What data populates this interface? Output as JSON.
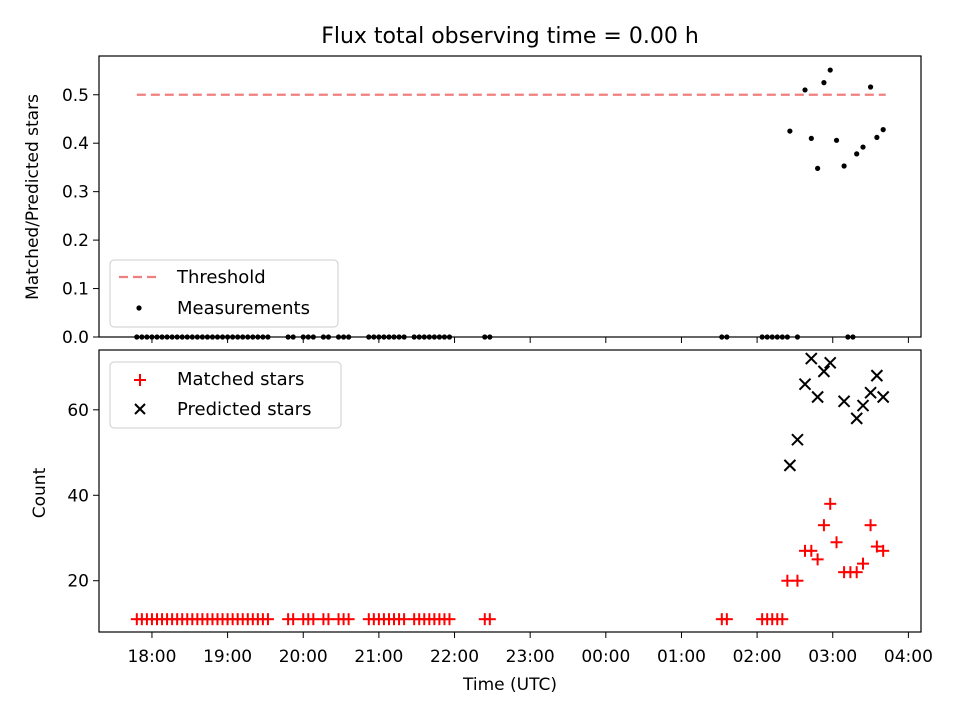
{
  "chart_data": [
    {
      "type": "scatter",
      "title": "Flux total observing time = 0.00 h",
      "xlabel": "",
      "ylabel": "Matched/Predicted stars",
      "ylim": [
        0,
        0.58
      ],
      "xlim": [
        "17:18",
        "04:10"
      ],
      "yticks": [
        0.0,
        0.1,
        0.2,
        0.3,
        0.4,
        0.5
      ],
      "ytick_labels": [
        "0.0",
        "0.1",
        "0.2",
        "0.3",
        "0.4",
        "0.5"
      ],
      "legend_placement": "lower-left",
      "series": [
        {
          "name": "Threshold",
          "kind": "dashed-line",
          "color": "#f08080",
          "x": [
            "17:48",
            "03:42"
          ],
          "y": [
            0.5,
            0.5
          ]
        },
        {
          "name": "Measurements",
          "kind": "dot",
          "color": "#000000",
          "x": [
            "17:48",
            "17:52",
            "17:56",
            "18:00",
            "18:04",
            "18:08",
            "18:12",
            "18:16",
            "18:20",
            "18:24",
            "18:28",
            "18:32",
            "18:36",
            "18:40",
            "18:44",
            "18:48",
            "18:52",
            "18:56",
            "19:00",
            "19:04",
            "19:08",
            "19:12",
            "19:16",
            "19:20",
            "19:24",
            "19:28",
            "19:32",
            "19:48",
            "19:52",
            "20:00",
            "20:04",
            "20:08",
            "20:16",
            "20:20",
            "20:28",
            "20:32",
            "20:36",
            "20:52",
            "20:56",
            "21:00",
            "21:04",
            "21:08",
            "21:12",
            "21:16",
            "21:20",
            "21:28",
            "21:32",
            "21:36",
            "21:40",
            "21:44",
            "21:48",
            "21:52",
            "21:56",
            "22:24",
            "22:28",
            "01:32",
            "01:36",
            "02:04",
            "02:08",
            "02:12",
            "02:16",
            "02:20",
            "02:24",
            "02:32",
            "03:12",
            "03:16",
            "02:26",
            "02:38",
            "02:43",
            "02:48",
            "02:53",
            "02:58",
            "03:03",
            "03:09",
            "03:19",
            "03:24",
            "03:30",
            "03:35",
            "03:40"
          ],
          "y": [
            0,
            0,
            0,
            0,
            0,
            0,
            0,
            0,
            0,
            0,
            0,
            0,
            0,
            0,
            0,
            0,
            0,
            0,
            0,
            0,
            0,
            0,
            0,
            0,
            0,
            0,
            0,
            0,
            0,
            0,
            0,
            0,
            0,
            0,
            0,
            0,
            0,
            0,
            0,
            0,
            0,
            0,
            0,
            0,
            0,
            0,
            0,
            0,
            0,
            0,
            0,
            0,
            0,
            0,
            0,
            0,
            0,
            0,
            0,
            0,
            0,
            0,
            0,
            0,
            0,
            0,
            0.425,
            0.51,
            0.41,
            0.348,
            0.525,
            0.551,
            0.406,
            0.353,
            0.378,
            0.392,
            0.516,
            0.412,
            0.428
          ]
        }
      ],
      "legend": [
        "Threshold",
        "Measurements"
      ]
    },
    {
      "type": "scatter",
      "title": "",
      "xlabel": "Time (UTC)",
      "ylabel": "Count",
      "ylim": [
        8,
        74
      ],
      "xlim": [
        "17:18",
        "04:10"
      ],
      "yticks": [
        20,
        40,
        60
      ],
      "ytick_labels": [
        "20",
        "40",
        "60"
      ],
      "xticks": [
        "18:00",
        "19:00",
        "20:00",
        "21:00",
        "22:00",
        "23:00",
        "00:00",
        "01:00",
        "02:00",
        "03:00",
        "04:00"
      ],
      "xtick_labels": [
        "18:00",
        "19:00",
        "20:00",
        "21:00",
        "22:00",
        "23:00",
        "00:00",
        "01:00",
        "02:00",
        "03:00",
        "04:00"
      ],
      "legend_placement": "upper-left",
      "series": [
        {
          "name": "Matched stars",
          "kind": "plus",
          "color": "#ff0000",
          "x": [
            "17:48",
            "17:52",
            "17:56",
            "18:00",
            "18:04",
            "18:08",
            "18:12",
            "18:16",
            "18:20",
            "18:24",
            "18:28",
            "18:32",
            "18:36",
            "18:40",
            "18:44",
            "18:48",
            "18:52",
            "18:56",
            "19:00",
            "19:04",
            "19:08",
            "19:12",
            "19:16",
            "19:20",
            "19:24",
            "19:28",
            "19:32",
            "19:48",
            "19:52",
            "20:00",
            "20:04",
            "20:08",
            "20:16",
            "20:20",
            "20:28",
            "20:32",
            "20:36",
            "20:52",
            "20:56",
            "21:00",
            "21:04",
            "21:08",
            "21:12",
            "21:16",
            "21:20",
            "21:28",
            "21:32",
            "21:36",
            "21:40",
            "21:44",
            "21:48",
            "21:52",
            "21:56",
            "22:24",
            "22:28",
            "01:32",
            "01:36",
            "02:04",
            "02:08",
            "02:12",
            "02:16",
            "02:20",
            "02:24",
            "02:32",
            "02:38",
            "02:43",
            "02:48",
            "02:53",
            "02:58",
            "03:03",
            "03:09",
            "03:14",
            "03:19",
            "03:24",
            "03:30",
            "03:35",
            "03:40"
          ],
          "y": [
            11,
            11,
            11,
            11,
            11,
            11,
            11,
            11,
            11,
            11,
            11,
            11,
            11,
            11,
            11,
            11,
            11,
            11,
            11,
            11,
            11,
            11,
            11,
            11,
            11,
            11,
            11,
            11,
            11,
            11,
            11,
            11,
            11,
            11,
            11,
            11,
            11,
            11,
            11,
            11,
            11,
            11,
            11,
            11,
            11,
            11,
            11,
            11,
            11,
            11,
            11,
            11,
            11,
            11,
            11,
            11,
            11,
            11,
            11,
            11,
            11,
            11,
            20,
            20,
            27,
            27,
            25,
            33,
            38,
            29,
            22,
            22,
            22,
            24,
            33,
            28,
            27
          ]
        },
        {
          "name": "Predicted stars",
          "kind": "x",
          "color": "#000000",
          "x": [
            "02:26",
            "02:32",
            "02:38",
            "02:43",
            "02:48",
            "02:53",
            "02:58",
            "03:09",
            "03:19",
            "03:24",
            "03:30",
            "03:35",
            "03:40"
          ],
          "y": [
            47,
            53,
            66,
            72,
            63,
            69,
            71,
            62,
            58,
            61,
            64,
            68,
            63
          ]
        }
      ],
      "legend": [
        "Matched stars",
        "Predicted stars"
      ]
    }
  ]
}
